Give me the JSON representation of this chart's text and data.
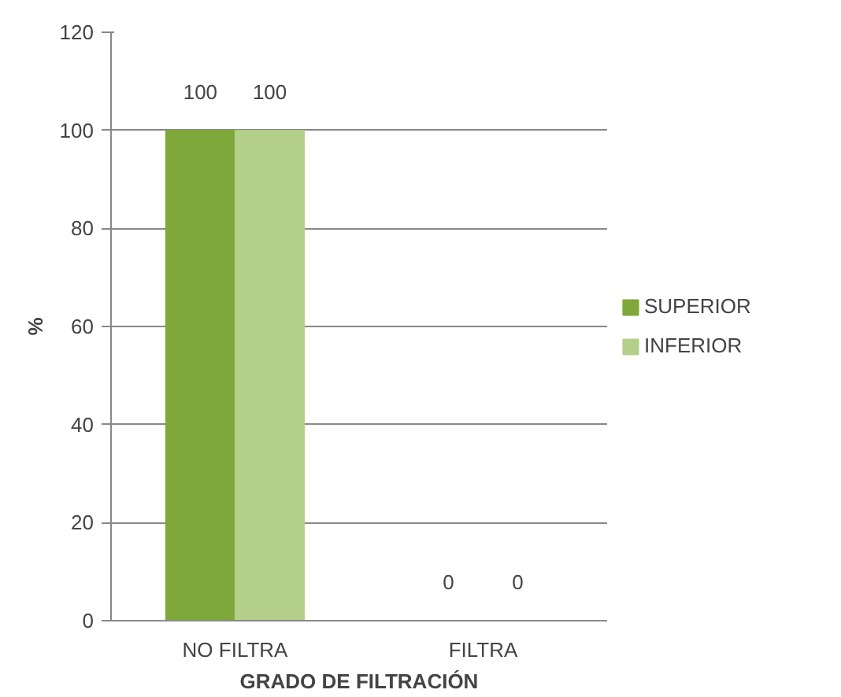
{
  "chart_data": {
    "type": "bar",
    "xlabel": "GRADO DE FILTRACIÓN",
    "ylabel": "%",
    "categories": [
      "NO FILTRA",
      "FILTRA"
    ],
    "series": [
      {
        "name": "SUPERIOR",
        "color": "#7fa83a",
        "values": [
          100,
          0
        ]
      },
      {
        "name": "INFERIOR",
        "color": "#b3cf8a",
        "values": [
          100,
          0
        ]
      }
    ],
    "ylim": [
      0,
      120
    ],
    "yticks": [
      0,
      20,
      40,
      60,
      80,
      100,
      120
    ],
    "grid": "y",
    "legend": "right",
    "data_labels": true
  }
}
